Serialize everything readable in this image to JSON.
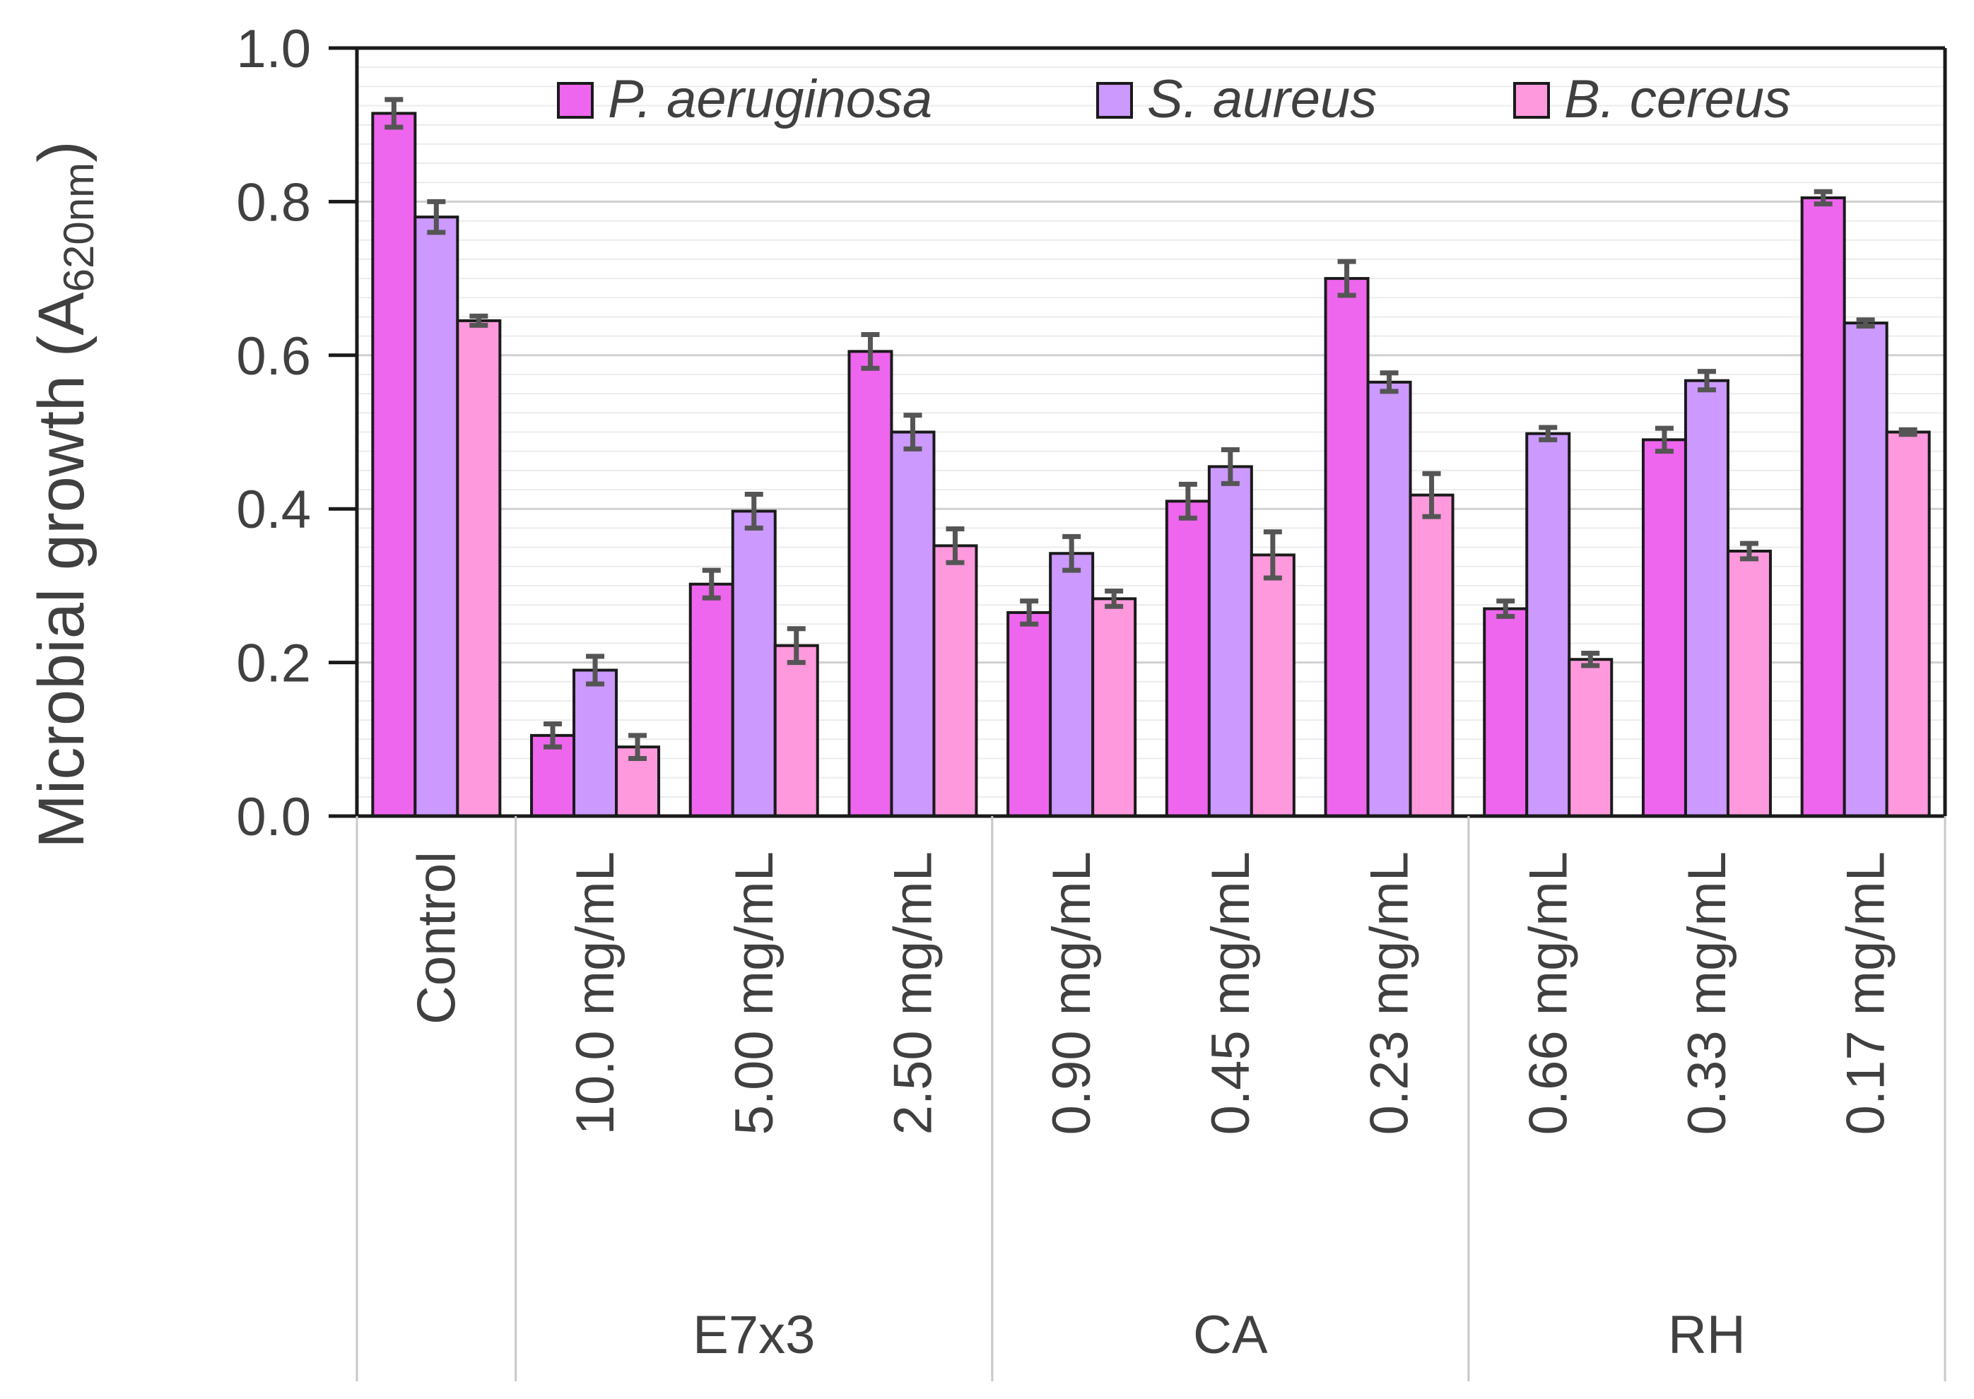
{
  "chart_data": {
    "type": "bar",
    "title": "",
    "ylabel": "Microbial growth (A",
    "ylabel_subscript": "620nm",
    "ylabel_close": ")",
    "xlabel": "",
    "ylim": [
      0,
      1.0
    ],
    "yticks": [
      0,
      0.2,
      0.4,
      0.6,
      0.8,
      1.0
    ],
    "ytick_labels": [
      "0.0",
      "0.2",
      "0.4",
      "0.6",
      "0.8",
      "1.0"
    ],
    "grid": true,
    "legend_position": "top",
    "categories": [
      "Control",
      "10.0 mg/mL",
      "5.00 mg/mL",
      "2.50 mg/mL",
      "0.90 mg/mL",
      "0.45 mg/mL",
      "0.23 mg/mL",
      "0.66 mg/mL",
      "0.33 mg/mL",
      "0.17 mg/mL"
    ],
    "groups": [
      {
        "label": "",
        "start": 0,
        "end": 0
      },
      {
        "label": "E7x3",
        "start": 1,
        "end": 3
      },
      {
        "label": "CA",
        "start": 4,
        "end": 6
      },
      {
        "label": "RH",
        "start": 7,
        "end": 9
      }
    ],
    "series": [
      {
        "name": "P. aeruginosa",
        "color": "#EE66EE",
        "values": [
          0.915,
          0.105,
          0.302,
          0.605,
          0.265,
          0.41,
          0.7,
          0.27,
          0.49,
          0.805
        ],
        "errors": [
          0.018,
          0.015,
          0.018,
          0.022,
          0.015,
          0.022,
          0.022,
          0.01,
          0.015,
          0.008
        ]
      },
      {
        "name": "S. aureus",
        "color": "#CC99FF",
        "values": [
          0.78,
          0.19,
          0.397,
          0.5,
          0.342,
          0.455,
          0.565,
          0.498,
          0.567,
          0.642
        ],
        "errors": [
          0.02,
          0.018,
          0.022,
          0.022,
          0.022,
          0.022,
          0.012,
          0.008,
          0.012,
          0.004
        ]
      },
      {
        "name": "B. cereus",
        "color": "#FF99DD",
        "values": [
          0.645,
          0.09,
          0.222,
          0.352,
          0.283,
          0.34,
          0.418,
          0.204,
          0.345,
          0.5
        ],
        "errors": [
          0.006,
          0.015,
          0.022,
          0.022,
          0.01,
          0.03,
          0.028,
          0.008,
          0.01,
          0.003
        ]
      }
    ]
  }
}
